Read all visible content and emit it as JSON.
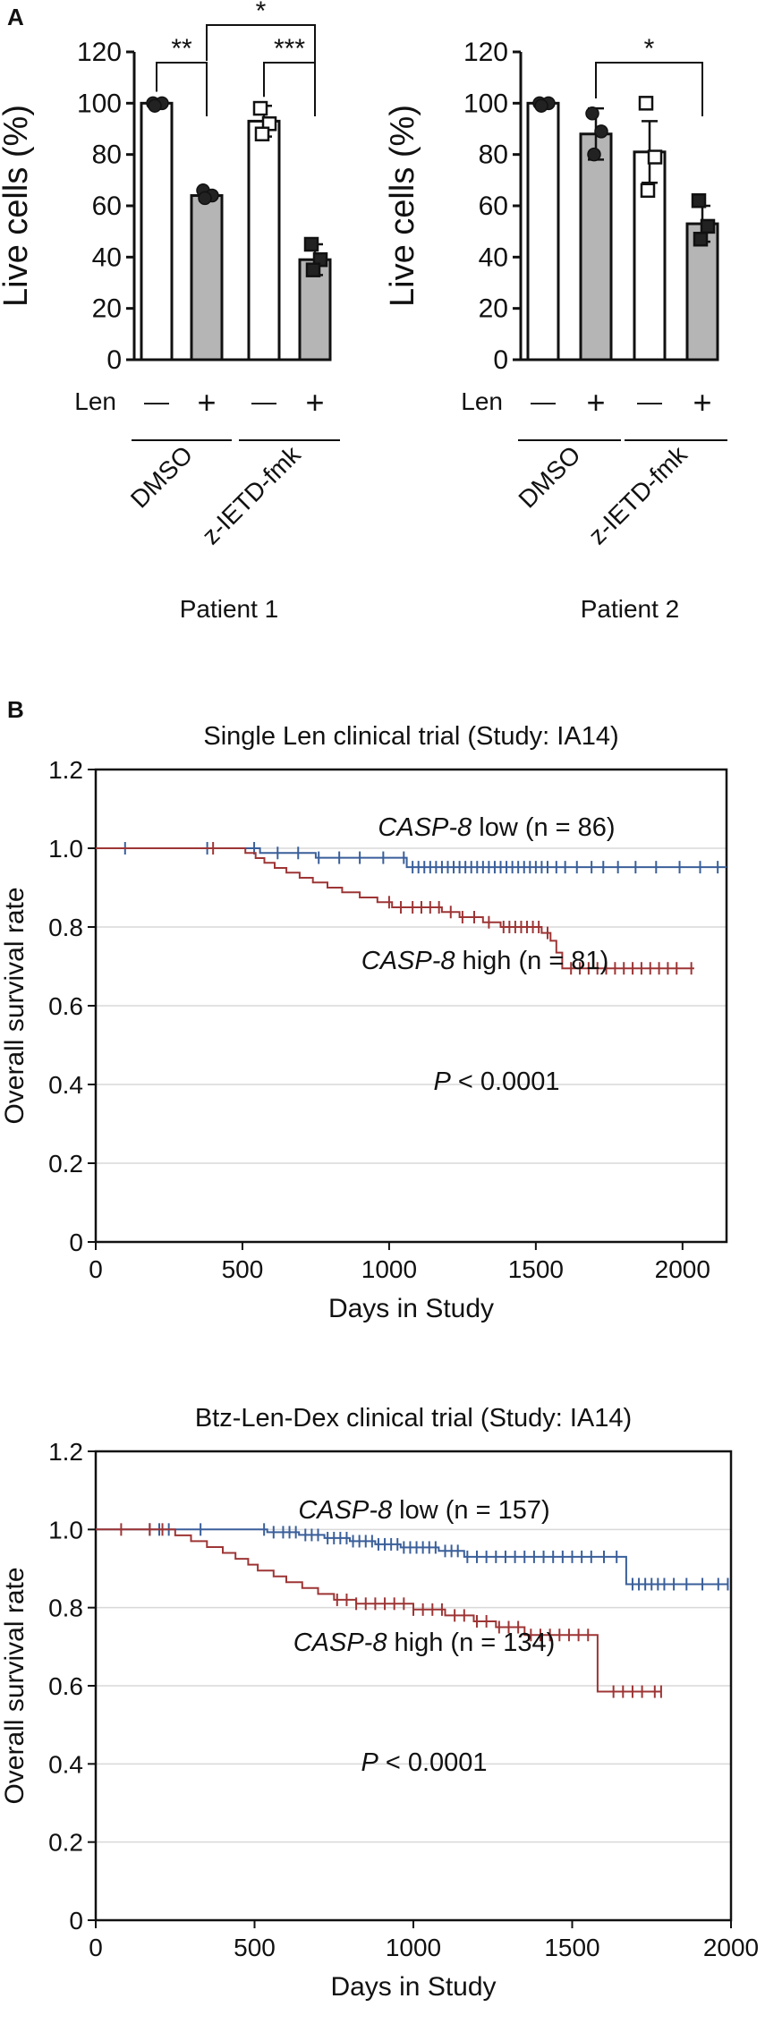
{
  "panel_labels": {
    "a": "A",
    "b": "B"
  },
  "chart_data": [
    {
      "type": "bar",
      "id": "patient1",
      "caption": "Patient 1",
      "ylabel": "Live cells (%)",
      "ylim": [
        0,
        120
      ],
      "yticks": [
        "0",
        "20",
        "40",
        "60",
        "80",
        "100",
        "120"
      ],
      "row_label": "Len",
      "len_marks": [
        "—",
        "+",
        "—",
        "+"
      ],
      "groups": [
        "DMSO",
        "z-IETD-fmk"
      ],
      "bars": [
        {
          "value": 100,
          "err": 1,
          "fill": "#ffffff",
          "marker": "circle",
          "points": [
            100,
            100,
            99
          ]
        },
        {
          "value": 64,
          "err": 2,
          "fill": "#b5b5b5",
          "marker": "circle",
          "points": [
            66,
            64,
            63
          ]
        },
        {
          "value": 93,
          "err": 6,
          "fill": "#ffffff",
          "marker": "square",
          "points": [
            98,
            92,
            88
          ]
        },
        {
          "value": 39,
          "err": 6,
          "fill": "#b5b5b5",
          "marker": "square",
          "points": [
            45,
            39,
            35
          ]
        }
      ],
      "significance": [
        {
          "from": 0,
          "to": 1,
          "label": "**"
        },
        {
          "from": 2,
          "to": 3,
          "label": "***"
        },
        {
          "from": 1,
          "to": 3,
          "label": "*"
        }
      ]
    },
    {
      "type": "bar",
      "id": "patient2",
      "caption": "Patient 2",
      "ylabel": "Live cells (%)",
      "ylim": [
        0,
        120
      ],
      "yticks": [
        "0",
        "20",
        "40",
        "60",
        "80",
        "100",
        "120"
      ],
      "row_label": "Len",
      "len_marks": [
        "—",
        "+",
        "—",
        "+"
      ],
      "groups": [
        "DMSO",
        "z-IETD-fmk"
      ],
      "bars": [
        {
          "value": 100,
          "err": 1,
          "fill": "#ffffff",
          "marker": "circle",
          "points": [
            100,
            100,
            99
          ]
        },
        {
          "value": 88,
          "err": 10,
          "fill": "#b5b5b5",
          "marker": "circle",
          "points": [
            96,
            89,
            80
          ]
        },
        {
          "value": 81,
          "err": 12,
          "fill": "#ffffff",
          "marker": "square",
          "points": [
            100,
            79,
            66
          ]
        },
        {
          "value": 53,
          "err": 7,
          "fill": "#b5b5b5",
          "marker": "square",
          "points": [
            62,
            52,
            47
          ]
        }
      ],
      "significance": [
        {
          "from": 1,
          "to": 3,
          "label": "*"
        }
      ]
    },
    {
      "type": "line",
      "subtype": "kaplan-meier",
      "id": "km1",
      "title": "Single Len clinical trial (Study: IA14)",
      "xlabel": "Days in Study",
      "ylabel": "Overall survival rate",
      "xlim": [
        0,
        2150
      ],
      "ylim": [
        0,
        1.2
      ],
      "xticks": [
        0,
        500,
        1000,
        1500,
        2000
      ],
      "yticks": [
        "0",
        "0.2",
        "0.4",
        "0.6",
        "0.8",
        "1.0",
        "1.2"
      ],
      "annotation_p": {
        "italic": "P",
        "rest": " < 0.0001"
      },
      "series": [
        {
          "name": "CASP-8 low",
          "name_italic": "CASP-8",
          "name_rest": " low (n = 86)",
          "color": "#3a5f9a",
          "steps": [
            [
              0,
              1.0
            ],
            [
              560,
              1.0
            ],
            [
              560,
              0.988
            ],
            [
              750,
              0.988
            ],
            [
              750,
              0.976
            ],
            [
              1060,
              0.976
            ],
            [
              1060,
              0.952
            ],
            [
              2150,
              0.952
            ]
          ],
          "censors": [
            100,
            380,
            540,
            620,
            690,
            760,
            830,
            900,
            980,
            1050,
            1080,
            1100,
            1120,
            1140,
            1160,
            1180,
            1200,
            1220,
            1240,
            1260,
            1280,
            1300,
            1320,
            1340,
            1360,
            1380,
            1400,
            1420,
            1440,
            1460,
            1480,
            1500,
            1520,
            1540,
            1570,
            1600,
            1640,
            1690,
            1730,
            1780,
            1840,
            1910,
            1990,
            2060,
            2120
          ]
        },
        {
          "name": "CASP-8 high",
          "name_italic": "CASP-8",
          "name_rest": " high (n = 81)",
          "color": "#9e3535",
          "steps": [
            [
              0,
              1.0
            ],
            [
              510,
              1.0
            ],
            [
              510,
              0.988
            ],
            [
              545,
              0.988
            ],
            [
              545,
              0.975
            ],
            [
              575,
              0.975
            ],
            [
              575,
              0.963
            ],
            [
              610,
              0.963
            ],
            [
              610,
              0.95
            ],
            [
              650,
              0.95
            ],
            [
              650,
              0.938
            ],
            [
              695,
              0.938
            ],
            [
              695,
              0.925
            ],
            [
              740,
              0.925
            ],
            [
              740,
              0.913
            ],
            [
              790,
              0.913
            ],
            [
              790,
              0.9
            ],
            [
              840,
              0.9
            ],
            [
              840,
              0.888
            ],
            [
              900,
              0.888
            ],
            [
              900,
              0.875
            ],
            [
              960,
              0.875
            ],
            [
              960,
              0.863
            ],
            [
              1010,
              0.863
            ],
            [
              1010,
              0.85
            ],
            [
              1180,
              0.85
            ],
            [
              1180,
              0.838
            ],
            [
              1240,
              0.838
            ],
            [
              1240,
              0.825
            ],
            [
              1320,
              0.825
            ],
            [
              1320,
              0.812
            ],
            [
              1380,
              0.812
            ],
            [
              1380,
              0.8
            ],
            [
              1520,
              0.8
            ],
            [
              1520,
              0.785
            ],
            [
              1550,
              0.785
            ],
            [
              1550,
              0.765
            ],
            [
              1570,
              0.765
            ],
            [
              1570,
              0.735
            ],
            [
              1590,
              0.735
            ],
            [
              1590,
              0.695
            ],
            [
              2040,
              0.695
            ]
          ],
          "censors": [
            400,
            1000,
            1040,
            1080,
            1110,
            1140,
            1170,
            1210,
            1250,
            1290,
            1340,
            1390,
            1410,
            1430,
            1450,
            1470,
            1490,
            1510,
            1540,
            1620,
            1650,
            1680,
            1710,
            1740,
            1770,
            1800,
            1830,
            1860,
            1890,
            1920,
            1950,
            1980,
            2030
          ]
        }
      ]
    },
    {
      "type": "line",
      "subtype": "kaplan-meier",
      "id": "km2",
      "title": "Btz-Len-Dex clinical trial (Study: IA14)",
      "xlabel": "Days in Study",
      "ylabel": "Overall survival rate",
      "xlim": [
        0,
        2000
      ],
      "ylim": [
        0,
        1.2
      ],
      "xticks": [
        0,
        500,
        1000,
        1500,
        2000
      ],
      "yticks": [
        "0",
        "0.2",
        "0.4",
        "0.6",
        "0.8",
        "1.0",
        "1.2"
      ],
      "annotation_p": {
        "italic": "P",
        "rest": " < 0.0001"
      },
      "series": [
        {
          "name": "CASP-8 low",
          "name_italic": "CASP-8",
          "name_rest": " low (n = 157)",
          "color": "#3a5f9a",
          "steps": [
            [
              0,
              1.0
            ],
            [
              540,
              1.0
            ],
            [
              540,
              0.993
            ],
            [
              640,
              0.993
            ],
            [
              640,
              0.986
            ],
            [
              720,
              0.986
            ],
            [
              720,
              0.978
            ],
            [
              800,
              0.978
            ],
            [
              800,
              0.97
            ],
            [
              880,
              0.97
            ],
            [
              880,
              0.962
            ],
            [
              960,
              0.962
            ],
            [
              960,
              0.954
            ],
            [
              1080,
              0.954
            ],
            [
              1080,
              0.945
            ],
            [
              1160,
              0.945
            ],
            [
              1160,
              0.93
            ],
            [
              1670,
              0.93
            ],
            [
              1670,
              0.86
            ],
            [
              1990,
              0.86
            ]
          ],
          "censors": [
            170,
            200,
            230,
            330,
            530,
            560,
            590,
            610,
            630,
            660,
            680,
            700,
            730,
            750,
            770,
            790,
            810,
            830,
            850,
            870,
            890,
            910,
            930,
            950,
            970,
            990,
            1010,
            1030,
            1050,
            1070,
            1100,
            1120,
            1140,
            1170,
            1200,
            1230,
            1260,
            1290,
            1320,
            1350,
            1380,
            1410,
            1440,
            1470,
            1500,
            1530,
            1560,
            1600,
            1640,
            1690,
            1710,
            1730,
            1750,
            1770,
            1790,
            1820,
            1860,
            1910,
            1960,
            1990
          ]
        },
        {
          "name": "CASP-8 high",
          "name_italic": "CASP-8",
          "name_rest": " high (n = 134)",
          "color": "#9e3535",
          "steps": [
            [
              0,
              1.0
            ],
            [
              250,
              1.0
            ],
            [
              250,
              0.985
            ],
            [
              300,
              0.985
            ],
            [
              300,
              0.97
            ],
            [
              350,
              0.97
            ],
            [
              350,
              0.955
            ],
            [
              400,
              0.955
            ],
            [
              400,
              0.94
            ],
            [
              440,
              0.94
            ],
            [
              440,
              0.925
            ],
            [
              480,
              0.925
            ],
            [
              480,
              0.91
            ],
            [
              510,
              0.91
            ],
            [
              510,
              0.895
            ],
            [
              560,
              0.895
            ],
            [
              560,
              0.88
            ],
            [
              600,
              0.88
            ],
            [
              600,
              0.865
            ],
            [
              650,
              0.865
            ],
            [
              650,
              0.85
            ],
            [
              700,
              0.85
            ],
            [
              700,
              0.835
            ],
            [
              750,
              0.835
            ],
            [
              750,
              0.82
            ],
            [
              820,
              0.82
            ],
            [
              820,
              0.81
            ],
            [
              1000,
              0.81
            ],
            [
              1000,
              0.795
            ],
            [
              1100,
              0.795
            ],
            [
              1100,
              0.78
            ],
            [
              1190,
              0.78
            ],
            [
              1190,
              0.765
            ],
            [
              1260,
              0.765
            ],
            [
              1260,
              0.75
            ],
            [
              1350,
              0.75
            ],
            [
              1350,
              0.73
            ],
            [
              1580,
              0.73
            ],
            [
              1580,
              0.585
            ],
            [
              1780,
              0.585
            ]
          ],
          "censors": [
            80,
            170,
            210,
            760,
            790,
            820,
            850,
            880,
            910,
            940,
            970,
            1000,
            1030,
            1060,
            1090,
            1130,
            1160,
            1200,
            1230,
            1270,
            1300,
            1330,
            1370,
            1400,
            1430,
            1460,
            1490,
            1520,
            1550,
            1630,
            1660,
            1690,
            1720,
            1760,
            1780
          ]
        }
      ]
    }
  ]
}
